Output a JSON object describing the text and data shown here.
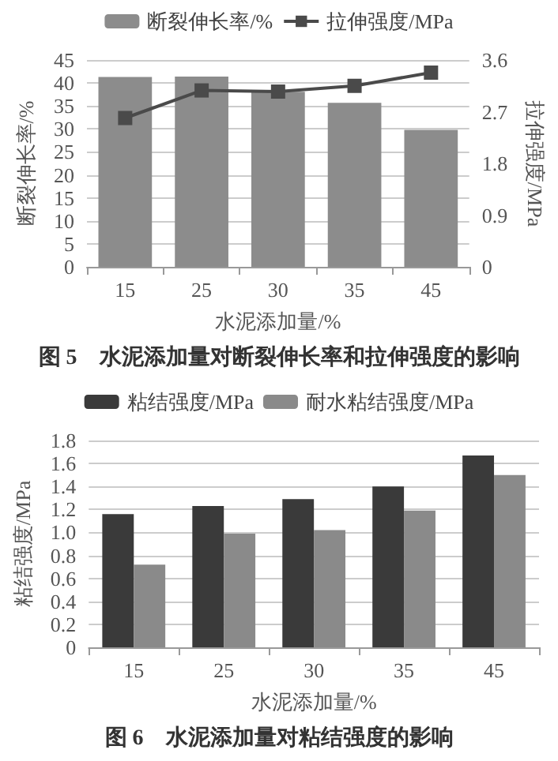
{
  "chart_data": [
    {
      "type": "bar",
      "title": "图 5　水泥添加量对断裂伸长率和拉伸强度的影响",
      "xlabel": "水泥添加量/%",
      "ylabel": "断裂伸长率/%",
      "y2label": "拉伸强度/MPa",
      "categories": [
        "15",
        "25",
        "30",
        "35",
        "45"
      ],
      "series": [
        {
          "name": "断裂伸长率/%",
          "color": "#8c8c8c",
          "values": [
            41.3,
            41.4,
            38.1,
            35.7,
            29.8
          ]
        },
        {
          "name": "拉伸强度/MPa",
          "type": "line",
          "axis": "y2",
          "color": "#4a4a4a",
          "values": [
            2.59,
            3.07,
            3.05,
            3.15,
            3.38
          ]
        }
      ],
      "ylim": [
        0,
        45
      ],
      "yticks": [
        0,
        5,
        10,
        15,
        20,
        25,
        30,
        35,
        40,
        45
      ],
      "y2lim": [
        0,
        3.6
      ],
      "y2ticks": [
        0,
        0.9,
        1.8,
        2.7,
        3.6
      ],
      "grid": "y",
      "legend": "top",
      "marker": "square"
    },
    {
      "type": "bar",
      "title": "图 6　水泥添加量对粘结强度的影响",
      "xlabel": "水泥添加量/%",
      "ylabel": "粘结强度/MPa",
      "categories": [
        "15",
        "25",
        "30",
        "35",
        "45"
      ],
      "series": [
        {
          "name": "粘结强度/MPa",
          "color": "#3a3a3a",
          "values": [
            1.16,
            1.23,
            1.29,
            1.4,
            1.67
          ]
        },
        {
          "name": "耐水粘结强度/MPa",
          "color": "#8a8a8a",
          "values": [
            0.72,
            0.99,
            1.02,
            1.19,
            1.5
          ]
        }
      ],
      "ylim": [
        0,
        1.8
      ],
      "yticks": [
        0,
        0.2,
        0.4,
        0.6,
        0.8,
        {
          "value": 1,
          "label": "1.0"
        },
        1.2,
        1.4,
        1.6,
        1.8
      ],
      "grid": "y",
      "legend": "top"
    }
  ]
}
